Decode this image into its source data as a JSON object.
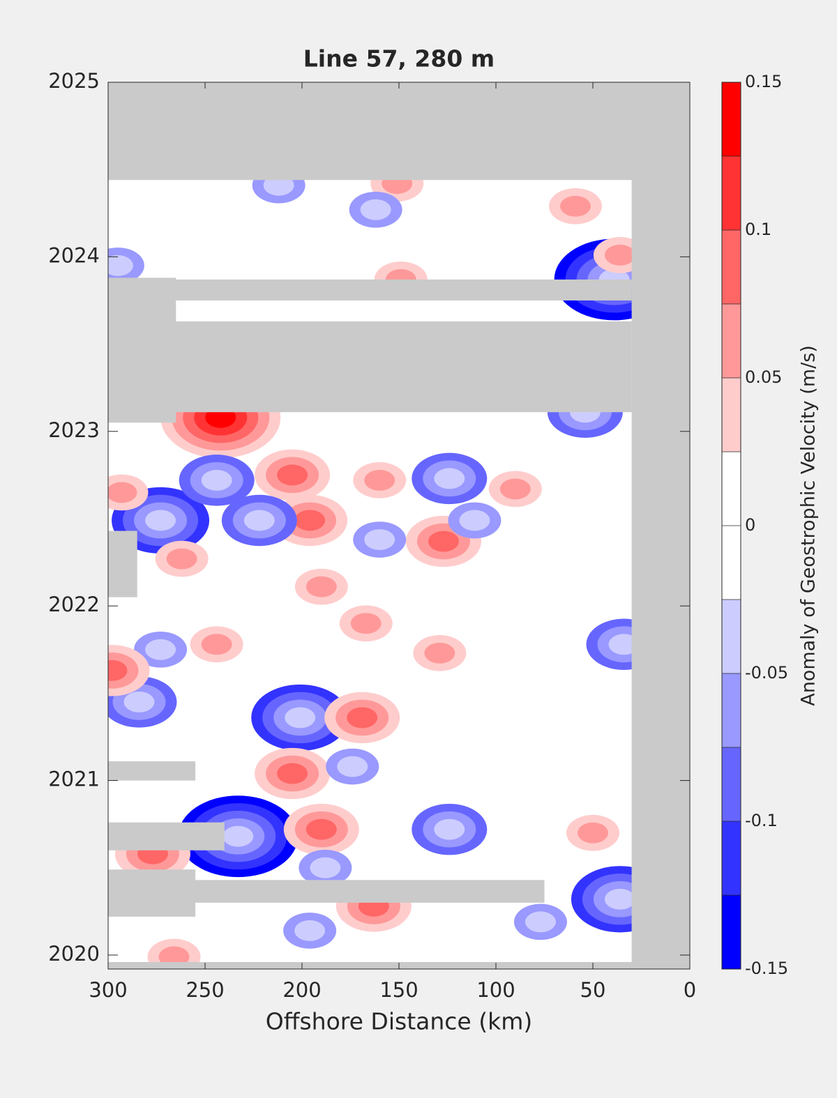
{
  "chart_data": {
    "type": "contour",
    "title": "Line 57, 280 m",
    "xlabel": "Offshore Distance (km)",
    "xlim": [
      300,
      0
    ],
    "xticks": [
      300,
      250,
      200,
      150,
      100,
      50,
      0
    ],
    "ylim": [
      2019.92,
      2025
    ],
    "yticks": [
      2020,
      2021,
      2022,
      2023,
      2024,
      2025
    ],
    "mask_color": "#cacaca",
    "colorbar": {
      "label": "Anomaly of Geostrophic Velocity (m/s)",
      "levels": [
        -0.15,
        -0.125,
        -0.1,
        -0.075,
        -0.05,
        -0.025,
        0,
        0.025,
        0.05,
        0.075,
        0.1,
        0.125,
        0.15
      ],
      "colors": [
        "#0000ff",
        "#3333ff",
        "#6666ff",
        "#9999ff",
        "#ccccff",
        "#ffffff",
        "#ffffff",
        "#ffcccc",
        "#ff9999",
        "#ff6666",
        "#ff3333",
        "#ff0000"
      ],
      "ticks": [
        -0.15,
        -0.1,
        -0.05,
        0,
        0.05,
        0.1,
        0.15
      ]
    },
    "eddies": [
      {
        "x": 242,
        "y": 2023.08,
        "value": 0.125
      },
      {
        "x": 273,
        "y": 2022.49,
        "value": -0.1
      },
      {
        "x": 201,
        "y": 2021.36,
        "value": -0.1
      },
      {
        "x": 233,
        "y": 2020.68,
        "value": -0.125
      },
      {
        "x": 36,
        "y": 2020.32,
        "value": -0.1
      },
      {
        "x": 39,
        "y": 2023.87,
        "value": -0.125
      },
      {
        "x": 205,
        "y": 2021.04,
        "value": 0.075
      },
      {
        "x": 190,
        "y": 2020.72,
        "value": 0.075
      },
      {
        "x": 169,
        "y": 2021.36,
        "value": 0.075
      },
      {
        "x": 196,
        "y": 2022.49,
        "value": 0.075
      },
      {
        "x": 205,
        "y": 2022.75,
        "value": 0.075
      },
      {
        "x": 124,
        "y": 2022.73,
        "value": -0.075
      },
      {
        "x": 222,
        "y": 2022.49,
        "value": -0.075
      },
      {
        "x": 244,
        "y": 2022.72,
        "value": -0.075
      },
      {
        "x": 284,
        "y": 2021.45,
        "value": -0.075
      },
      {
        "x": 34,
        "y": 2021.78,
        "value": -0.075
      },
      {
        "x": 54,
        "y": 2023.11,
        "value": -0.075
      },
      {
        "x": 127,
        "y": 2022.37,
        "value": 0.075
      },
      {
        "x": 163,
        "y": 2020.28,
        "value": 0.075
      },
      {
        "x": 277,
        "y": 2020.58,
        "value": 0.075
      },
      {
        "x": 151,
        "y": 2024.42,
        "value": 0.05
      },
      {
        "x": 190,
        "y": 2022.11,
        "value": 0.05
      },
      {
        "x": 90,
        "y": 2022.67,
        "value": 0.05
      },
      {
        "x": 59,
        "y": 2024.29,
        "value": 0.05
      },
      {
        "x": 262,
        "y": 2022.27,
        "value": 0.05
      },
      {
        "x": 244,
        "y": 2021.78,
        "value": 0.05
      },
      {
        "x": 167,
        "y": 2021.9,
        "value": 0.05
      },
      {
        "x": 129,
        "y": 2021.73,
        "value": 0.05
      },
      {
        "x": 160,
        "y": 2022.72,
        "value": 0.05
      },
      {
        "x": 174,
        "y": 2021.08,
        "value": -0.05
      },
      {
        "x": 124,
        "y": 2020.72,
        "value": -0.075
      },
      {
        "x": 188,
        "y": 2020.5,
        "value": -0.05
      },
      {
        "x": 273,
        "y": 2021.75,
        "value": -0.05
      },
      {
        "x": 212,
        "y": 2024.41,
        "value": -0.05
      },
      {
        "x": 160,
        "y": 2022.38,
        "value": -0.05
      },
      {
        "x": 111,
        "y": 2022.49,
        "value": -0.05
      },
      {
        "x": 162,
        "y": 2024.27,
        "value": -0.05
      },
      {
        "x": 298,
        "y": 2021.63,
        "value": 0.075
      },
      {
        "x": 293,
        "y": 2022.65,
        "value": 0.05
      },
      {
        "x": 50,
        "y": 2020.7,
        "value": 0.05
      },
      {
        "x": 36,
        "y": 2024.01,
        "value": 0.05
      },
      {
        "x": 295,
        "y": 2023.95,
        "value": -0.05
      },
      {
        "x": 149,
        "y": 2023.87,
        "value": 0.05
      },
      {
        "x": 266,
        "y": 2019.99,
        "value": 0.05
      },
      {
        "x": 196,
        "y": 2020.14,
        "value": -0.05
      },
      {
        "x": 77,
        "y": 2020.19,
        "value": -0.05
      }
    ],
    "masks": [
      {
        "x": [
          300,
          0
        ],
        "y": [
          2024.44,
          2025
        ]
      },
      {
        "x": [
          30,
          0
        ],
        "y": [
          2019.92,
          2025
        ]
      },
      {
        "x": [
          300,
          0
        ],
        "y": [
          2019.92,
          2019.96
        ]
      },
      {
        "x": [
          300,
          30
        ],
        "y": [
          2023.75,
          2023.87
        ]
      },
      {
        "x": [
          300,
          30
        ],
        "y": [
          2023.11,
          2023.63
        ]
      },
      {
        "x": [
          300,
          265
        ],
        "y": [
          2023.05,
          2023.88
        ]
      },
      {
        "x": [
          300,
          285
        ],
        "y": [
          2022.05,
          2022.43
        ]
      },
      {
        "x": [
          300,
          255
        ],
        "y": [
          2021.0,
          2021.11
        ]
      },
      {
        "x": [
          300,
          240
        ],
        "y": [
          2020.6,
          2020.76
        ]
      },
      {
        "x": [
          300,
          255
        ],
        "y": [
          2020.22,
          2020.49
        ]
      },
      {
        "x": [
          300,
          75
        ],
        "y": [
          2020.3,
          2020.43
        ]
      }
    ]
  }
}
